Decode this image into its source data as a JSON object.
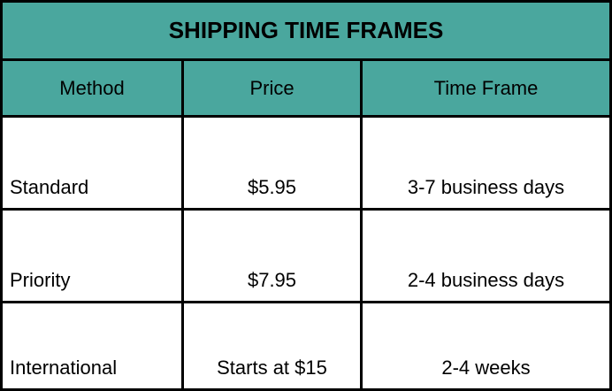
{
  "table": {
    "title": "SHIPPING TIME FRAMES",
    "headers": [
      "Method",
      "Price",
      "Time Frame"
    ],
    "rows": [
      {
        "method": "Standard",
        "price": "$5.95",
        "time_frame": "3-7 business days"
      },
      {
        "method": "Priority",
        "price": "$7.95",
        "time_frame": "2-4 business days"
      },
      {
        "method": "International",
        "price": "Starts at $15",
        "time_frame": "2-4 weeks"
      }
    ]
  },
  "colors": {
    "header_background": "#4aa79e",
    "border": "#000000",
    "body_background": "#ffffff"
  }
}
